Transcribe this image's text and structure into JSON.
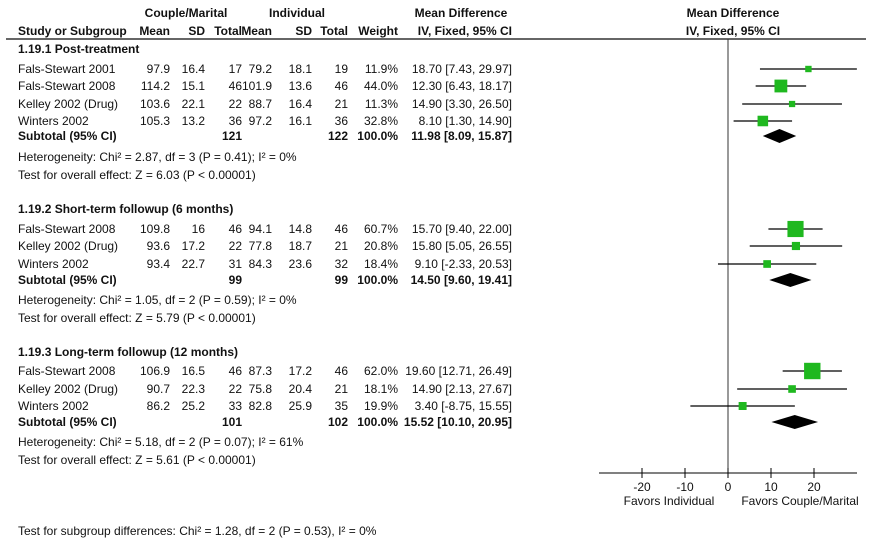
{
  "chart_data": {
    "type": "forest",
    "header": {
      "group_couple": "Couple/Marital",
      "group_individual": "Individual",
      "md_title": "Mean Difference",
      "columns": [
        "Study or Subgroup",
        "Mean",
        "SD",
        "Total",
        "Mean",
        "SD",
        "Total",
        "Weight",
        "IV, Fixed, 95% CI"
      ],
      "plot_title": "Mean Difference",
      "plot_subtitle": "IV, Fixed, 95% CI"
    },
    "subgroups": [
      {
        "title": "1.19.1 Post-treatment",
        "studies": [
          {
            "name": "Fals-Stewart 2001",
            "cm_mean": "97.9",
            "cm_sd": "16.4",
            "cm_total": "17",
            "ind_mean": "79.2",
            "ind_sd": "18.1",
            "ind_total": "19",
            "weight": "11.9%",
            "ci_text": "18.70 [7.43, 29.97]",
            "md": 18.7,
            "lo": 7.43,
            "hi": 29.97,
            "w": 11.9
          },
          {
            "name": "Fals-Stewart 2008",
            "cm_mean": "114.2",
            "cm_sd": "15.1",
            "cm_total": "46",
            "ind_mean": "101.9",
            "ind_sd": "13.6",
            "ind_total": "46",
            "weight": "44.0%",
            "ci_text": "12.30 [6.43, 18.17]",
            "md": 12.3,
            "lo": 6.43,
            "hi": 18.17,
            "w": 44.0
          },
          {
            "name": "Kelley 2002 (Drug)",
            "cm_mean": "103.6",
            "cm_sd": "22.1",
            "cm_total": "22",
            "ind_mean": "88.7",
            "ind_sd": "16.4",
            "ind_total": "21",
            "weight": "11.3%",
            "ci_text": "14.90 [3.30, 26.50]",
            "md": 14.9,
            "lo": 3.3,
            "hi": 26.5,
            "w": 11.3
          },
          {
            "name": "Winters 2002",
            "cm_mean": "105.3",
            "cm_sd": "13.2",
            "cm_total": "36",
            "ind_mean": "97.2",
            "ind_sd": "16.1",
            "ind_total": "36",
            "weight": "32.8%",
            "ci_text": "8.10 [1.30, 14.90]",
            "md": 8.1,
            "lo": 1.3,
            "hi": 14.9,
            "w": 32.8
          }
        ],
        "subtotal": {
          "label": "Subtotal (95% CI)",
          "cm_total": "121",
          "ind_total": "122",
          "weight": "100.0%",
          "ci_text": "11.98 [8.09, 15.87]",
          "md": 11.98,
          "lo": 8.09,
          "hi": 15.87
        },
        "heterogeneity": "Heterogeneity: Chi² = 2.87, df = 3 (P = 0.41); I² = 0%",
        "overall": "Test for overall effect: Z = 6.03 (P < 0.00001)"
      },
      {
        "title": "1.19.2 Short-term followup (6 months)",
        "studies": [
          {
            "name": "Fals-Stewart 2008",
            "cm_mean": "109.8",
            "cm_sd": "16",
            "cm_total": "46",
            "ind_mean": "94.1",
            "ind_sd": "14.8",
            "ind_total": "46",
            "weight": "60.7%",
            "ci_text": "15.70 [9.40, 22.00]",
            "md": 15.7,
            "lo": 9.4,
            "hi": 22.0,
            "w": 60.7
          },
          {
            "name": "Kelley 2002 (Drug)",
            "cm_mean": "93.6",
            "cm_sd": "17.2",
            "cm_total": "22",
            "ind_mean": "77.8",
            "ind_sd": "18.7",
            "ind_total": "21",
            "weight": "20.8%",
            "ci_text": "15.80 [5.05, 26.55]",
            "md": 15.8,
            "lo": 5.05,
            "hi": 26.55,
            "w": 20.8
          },
          {
            "name": "Winters 2002",
            "cm_mean": "93.4",
            "cm_sd": "22.7",
            "cm_total": "31",
            "ind_mean": "84.3",
            "ind_sd": "23.6",
            "ind_total": "32",
            "weight": "18.4%",
            "ci_text": "9.10 [-2.33, 20.53]",
            "md": 9.1,
            "lo": -2.33,
            "hi": 20.53,
            "w": 18.4
          }
        ],
        "subtotal": {
          "label": "Subtotal (95% CI)",
          "cm_total": "99",
          "ind_total": "99",
          "weight": "100.0%",
          "ci_text": "14.50 [9.60, 19.41]",
          "md": 14.5,
          "lo": 9.6,
          "hi": 19.41
        },
        "heterogeneity": "Heterogeneity: Chi² = 1.05, df = 2 (P = 0.59); I² = 0%",
        "overall": "Test for overall effect: Z = 5.79 (P < 0.00001)"
      },
      {
        "title": "1.19.3 Long-term followup (12 months)",
        "studies": [
          {
            "name": "Fals-Stewart 2008",
            "cm_mean": "106.9",
            "cm_sd": "16.5",
            "cm_total": "46",
            "ind_mean": "87.3",
            "ind_sd": "17.2",
            "ind_total": "46",
            "weight": "62.0%",
            "ci_text": "19.60 [12.71, 26.49]",
            "md": 19.6,
            "lo": 12.71,
            "hi": 26.49,
            "w": 62.0
          },
          {
            "name": "Kelley 2002 (Drug)",
            "cm_mean": "90.7",
            "cm_sd": "22.3",
            "cm_total": "22",
            "ind_mean": "75.8",
            "ind_sd": "20.4",
            "ind_total": "21",
            "weight": "18.1%",
            "ci_text": "14.90 [2.13, 27.67]",
            "md": 14.9,
            "lo": 2.13,
            "hi": 27.67,
            "w": 18.1
          },
          {
            "name": "Winters 2002",
            "cm_mean": "86.2",
            "cm_sd": "25.2",
            "cm_total": "33",
            "ind_mean": "82.8",
            "ind_sd": "25.9",
            "ind_total": "35",
            "weight": "19.9%",
            "ci_text": "3.40 [-8.75, 15.55]",
            "md": 3.4,
            "lo": -8.75,
            "hi": 15.55,
            "w": 19.9
          }
        ],
        "subtotal": {
          "label": "Subtotal (95% CI)",
          "cm_total": "101",
          "ind_total": "102",
          "weight": "100.0%",
          "ci_text": "15.52 [10.10, 20.95]",
          "md": 15.52,
          "lo": 10.1,
          "hi": 20.95
        },
        "heterogeneity": "Heterogeneity: Chi² = 5.18, df = 2 (P = 0.07); I² = 61%",
        "overall": "Test for overall effect: Z = 5.61 (P < 0.00001)"
      }
    ],
    "axis": {
      "xlim": [
        -30,
        30
      ],
      "ticks": [
        -20,
        -10,
        0,
        10,
        20
      ],
      "tick_labels": [
        "-20",
        "-10",
        "0",
        "10",
        "20"
      ],
      "favors_left": "Favors Individual",
      "favors_right": "Favors Couple/Marital"
    },
    "subgroup_test": "Test for subgroup differences: Chi² = 1.28, df = 2 (P = 0.53), I² = 0%",
    "colors": {
      "marker": "#1fb81f",
      "line": "#000000",
      "diamond": "#000000",
      "rule": "#666666"
    }
  }
}
